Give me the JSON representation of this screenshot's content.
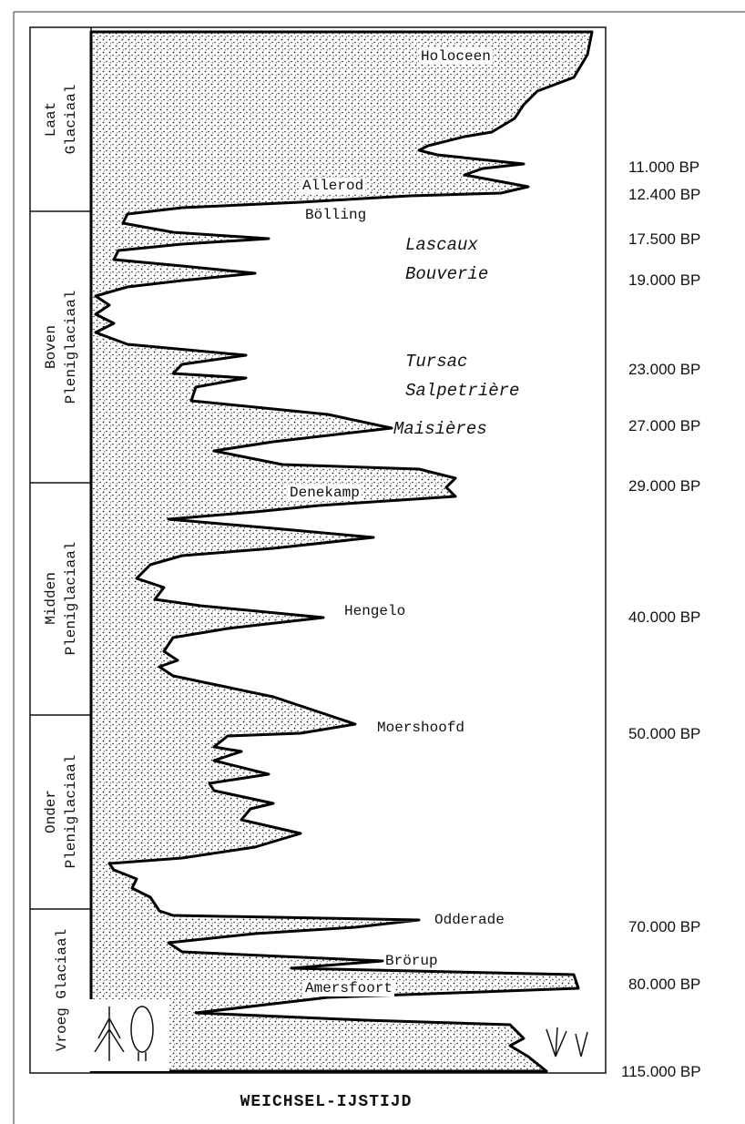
{
  "periods": [
    [
      "Laat",
      "Glaciaal"
    ],
    [
      "Boven",
      "Pleniglaciaal"
    ],
    [
      "Midden",
      "Pleniglaciaal"
    ],
    [
      "Onder",
      "Pleniglaciaal"
    ],
    [
      "Vroeg Glaciaal"
    ]
  ],
  "labels": [
    "Holoceen",
    "Allerod",
    "Bölling",
    "Lascaux",
    "Bouverie",
    "Tursac",
    "Salpetrière",
    "Maisières",
    "Denekamp",
    "Hengelo",
    "Moershoofd",
    "Odderade",
    "Brörup",
    "Amersfoort"
  ],
  "dates": [
    "11.000 BP",
    "12.400 BP",
    "17.500 BP",
    "19.000 BP",
    "23.000 BP",
    "27.000 BP",
    "29.000 BP",
    "40.000 BP",
    "50.000 BP",
    "70.000 BP",
    "80.000 BP",
    "115.000 BP"
  ],
  "caption": "WEICHSEL-IJSTIJD"
}
